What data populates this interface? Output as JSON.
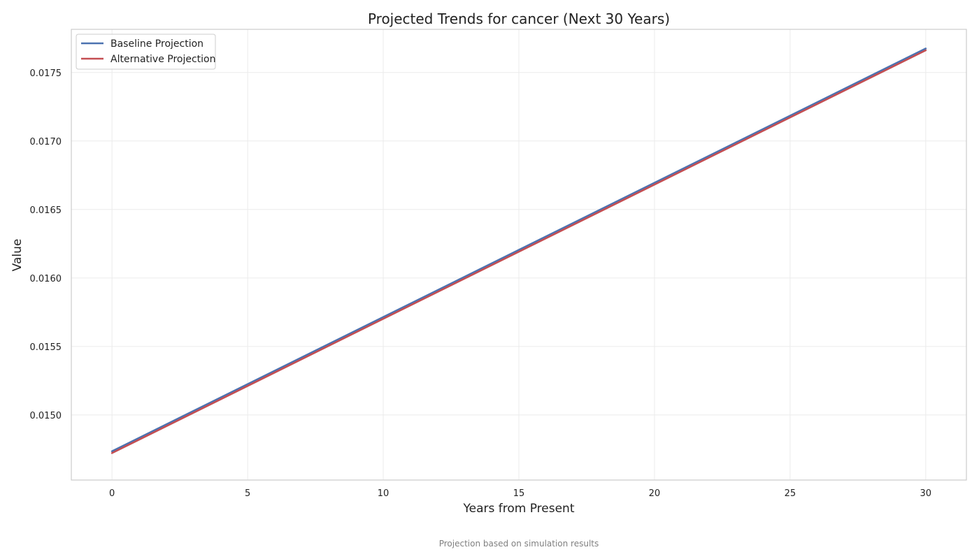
{
  "chart_data": {
    "type": "line",
    "title": "Projected Trends for cancer (Next 30 Years)",
    "xlabel": "Years from Present",
    "ylabel": "Value",
    "caption": "Projection based on simulation results",
    "xlim": [
      -1.5,
      31.5
    ],
    "ylim": [
      0.014525,
      0.017815
    ],
    "x_ticks": [
      0,
      5,
      10,
      15,
      20,
      25,
      30
    ],
    "x_tick_labels": [
      "0",
      "5",
      "10",
      "15",
      "20",
      "25",
      "30"
    ],
    "y_ticks": [
      0.015,
      0.0155,
      0.016,
      0.0165,
      0.017,
      0.0175
    ],
    "y_tick_labels": [
      "0.0150",
      "0.0155",
      "0.0160",
      "0.0165",
      "0.0170",
      "0.0175"
    ],
    "grid": true,
    "legend_position": "top-left",
    "x": [
      0,
      30
    ],
    "series": [
      {
        "name": "Baseline Projection",
        "color": "#4c72b0",
        "values": [
          0.014735,
          0.017675
        ]
      },
      {
        "name": "Alternative Projection",
        "color": "#c44e52",
        "values": [
          0.014722,
          0.017662
        ]
      }
    ]
  }
}
